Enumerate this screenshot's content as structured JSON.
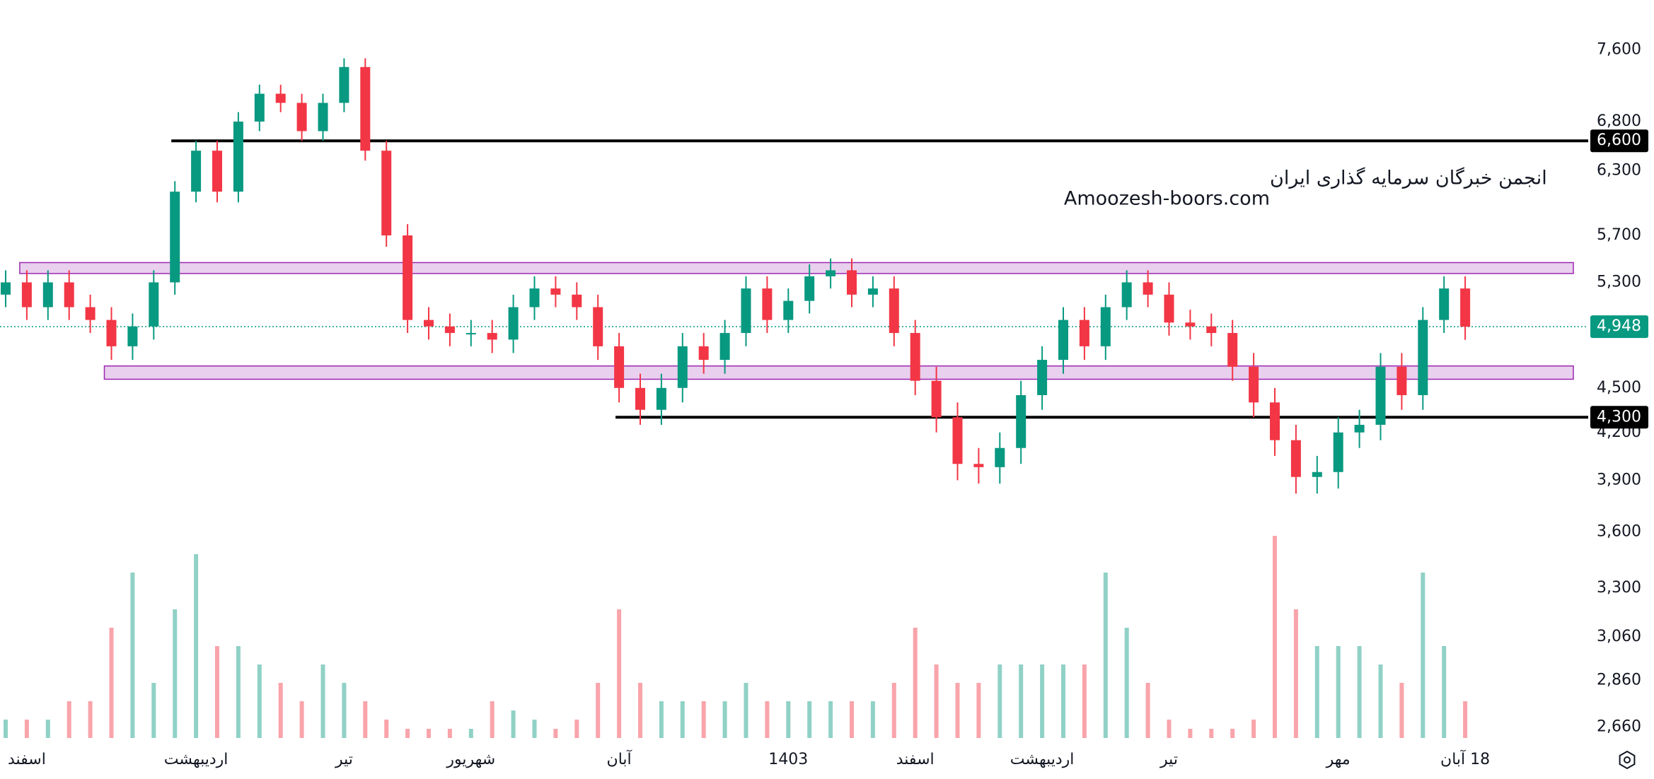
{
  "chart_data": {
    "type": "candlestick",
    "log_scale": true,
    "ylim": [
      2607,
      8210
    ],
    "yticks": [
      {
        "value": 7600,
        "label": "7,600"
      },
      {
        "value": 6800,
        "label": "6,800"
      },
      {
        "value": 6300,
        "label": "6,300"
      },
      {
        "value": 5700,
        "label": "5,700"
      },
      {
        "value": 5300,
        "label": "5,300"
      },
      {
        "value": 4500,
        "label": "4,500"
      },
      {
        "value": 4200,
        "label": "4,200"
      },
      {
        "value": 3900,
        "label": "3,900"
      },
      {
        "value": 3600,
        "label": "3,600"
      },
      {
        "value": 3300,
        "label": "3,300"
      },
      {
        "value": 3060,
        "label": "3,060"
      },
      {
        "value": 2860,
        "label": "2,860"
      },
      {
        "value": 2660,
        "label": "2,660"
      }
    ],
    "up_color": "#089981",
    "down_color": "#f23645",
    "categories": [
      null,
      "اسفند",
      null,
      null,
      null,
      null,
      null,
      null,
      null,
      "اردیبهشت",
      null,
      null,
      null,
      null,
      null,
      null,
      "تیر",
      null,
      null,
      null,
      null,
      null,
      "شهریور",
      null,
      null,
      null,
      null,
      null,
      null,
      "آبان",
      null,
      null,
      null,
      null,
      null,
      null,
      null,
      "1403",
      null,
      null,
      null,
      null,
      null,
      "اسفند",
      null,
      null,
      null,
      null,
      null,
      "اردیبهشت",
      null,
      null,
      null,
      null,
      null,
      "تیر",
      null,
      null,
      null,
      null,
      null,
      null,
      null,
      "مهر",
      null,
      null,
      null,
      null,
      null,
      "18 آبان"
    ],
    "open": [
      5200,
      5300,
      5100,
      5300,
      5100,
      5000,
      4800,
      4950,
      5300,
      6100,
      6500,
      6100,
      6800,
      7100,
      7000,
      6700,
      7000,
      7400,
      6500,
      5700,
      5000,
      4950,
      4900,
      4900,
      4850,
      5100,
      5250,
      5200,
      5100,
      4800,
      4500,
      4350,
      4500,
      4800,
      4700,
      4900,
      5250,
      5000,
      5150,
      5350,
      5400,
      5200,
      5250,
      4900,
      4550,
      4300,
      4000,
      3980,
      4100,
      4450,
      4700,
      5000,
      4800,
      5100,
      5300,
      5200,
      4980,
      4950,
      4900,
      4650,
      4400,
      4150,
      3920,
      3950,
      4200,
      4250,
      4650,
      4450,
      5000,
      5250
    ],
    "high": [
      5400,
      5400,
      5400,
      5400,
      5200,
      5100,
      5050,
      5400,
      6200,
      6600,
      6600,
      6900,
      7200,
      7200,
      7100,
      7100,
      7500,
      7500,
      6600,
      5800,
      5100,
      5050,
      5000,
      5000,
      5200,
      5350,
      5350,
      5300,
      5200,
      4900,
      4600,
      4600,
      4900,
      4900,
      5000,
      5350,
      5350,
      5250,
      5450,
      5500,
      5500,
      5350,
      5350,
      5000,
      4650,
      4400,
      4100,
      4200,
      4550,
      4800,
      5100,
      5100,
      5200,
      5400,
      5400,
      5300,
      5080,
      5050,
      5000,
      4750,
      4500,
      4250,
      4050,
      4300,
      4350,
      4750,
      4750,
      5100,
      5350,
      5350
    ],
    "low": [
      5100,
      5000,
      5000,
      5000,
      4900,
      4700,
      4700,
      4850,
      5200,
      6000,
      6000,
      6000,
      6700,
      6900,
      6600,
      6600,
      6900,
      6400,
      5600,
      4900,
      4850,
      4800,
      4800,
      4750,
      4750,
      5000,
      5100,
      5000,
      4700,
      4400,
      4250,
      4250,
      4400,
      4600,
      4600,
      4800,
      4900,
      4900,
      5050,
      5250,
      5100,
      5100,
      4800,
      4450,
      4200,
      3900,
      3880,
      3880,
      4000,
      4350,
      4600,
      4700,
      4700,
      5000,
      5100,
      4880,
      4850,
      4800,
      4550,
      4300,
      4050,
      3820,
      3820,
      3850,
      4100,
      4150,
      4350,
      4350,
      4900,
      4848
    ],
    "close": [
      5300,
      5100,
      5300,
      5100,
      5000,
      4800,
      4950,
      5300,
      6100,
      6500,
      6100,
      6800,
      7100,
      7000,
      6700,
      7000,
      7400,
      6500,
      5700,
      5000,
      4950,
      4900,
      4900,
      4850,
      5100,
      5250,
      5200,
      5100,
      4800,
      4500,
      4350,
      4500,
      4800,
      4700,
      4900,
      5250,
      5000,
      5150,
      5350,
      5400,
      5200,
      5250,
      4900,
      4550,
      4300,
      4000,
      3980,
      4100,
      4450,
      4700,
      5000,
      4800,
      5100,
      5300,
      5200,
      4980,
      4950,
      4900,
      4650,
      4400,
      4150,
      3920,
      3950,
      4200,
      4250,
      4650,
      4450,
      5000,
      5250,
      4948
    ],
    "volume": [
      1,
      1,
      1,
      2,
      2,
      6,
      9,
      3,
      7,
      10,
      5,
      5,
      4,
      3,
      2,
      4,
      3,
      2,
      1,
      0.5,
      0.5,
      0.5,
      0.5,
      2,
      1.5,
      1,
      0.5,
      1,
      3,
      7,
      3,
      2,
      2,
      2,
      2,
      3,
      2,
      2,
      2,
      2,
      2,
      2,
      3,
      6,
      4,
      3,
      3,
      4,
      4,
      4,
      4,
      4,
      9,
      6,
      3,
      1,
      0.5,
      0.5,
      0.5,
      1,
      11,
      7,
      5,
      5,
      5,
      4,
      3,
      9,
      5,
      2
    ],
    "levels": [
      {
        "value": 6600,
        "label": "6,600",
        "from_index": 8,
        "color": "#000000"
      },
      {
        "value": 4300,
        "label": "4,300",
        "from_index": 29,
        "color": "#000000"
      }
    ],
    "last_price": {
      "value": 4948,
      "label": "4,948",
      "color": "#089981"
    },
    "zones": [
      {
        "low": 5373,
        "high": 5465,
        "from_index": 1,
        "color": "#9c27b0"
      },
      {
        "low": 4561,
        "high": 4656,
        "from_index": 5,
        "color": "#9c27b0"
      }
    ],
    "watermark": [
      "انجمن خبرگان سرمایه گذاری ایران",
      "Amoozesh-boors.com"
    ]
  }
}
